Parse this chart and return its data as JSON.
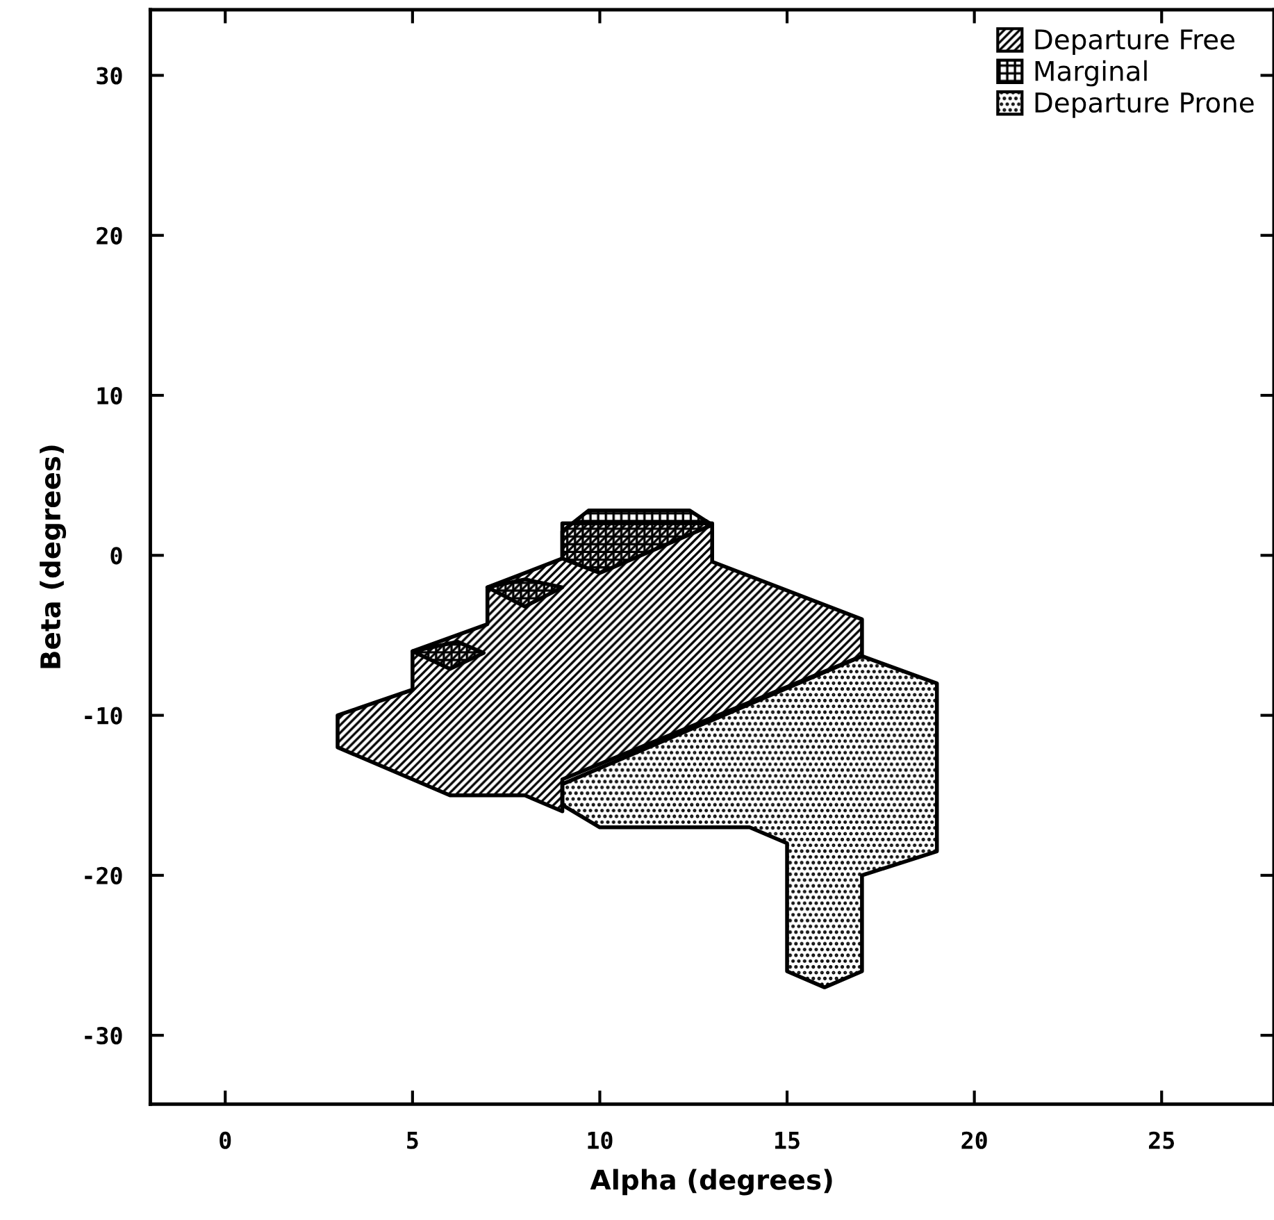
{
  "chart_data": {
    "type": "area",
    "xlabel": "Alpha (degrees)",
    "ylabel": "Beta (degrees)",
    "xlim": [
      -2,
      28
    ],
    "ylim": [
      -34.3,
      34.1
    ],
    "xticks": [
      0,
      5,
      10,
      15,
      20,
      25
    ],
    "yticks": [
      -30,
      -20,
      -10,
      0,
      10,
      20,
      30
    ],
    "grid": false,
    "legend": "top right",
    "series": [
      {
        "name": "Departure Free",
        "color": "#000000",
        "x": [
          3,
          5,
          5,
          7,
          7,
          9,
          9,
          13,
          13,
          17,
          17,
          9,
          9,
          8,
          6,
          3
        ],
        "values": [
          -10,
          -8.4,
          -6,
          -4.3,
          -2,
          -0.2,
          2,
          2,
          -0.4,
          -4,
          -6.3,
          -14,
          -16,
          -15,
          -15,
          -12
        ]
      },
      {
        "name": "Marginal",
        "color": "#000000",
        "x": [
          5,
          6.2,
          6.9,
          6,
          null,
          7,
          8,
          9,
          8,
          null,
          9,
          9.7,
          12.4,
          13,
          10,
          9
        ],
        "values": [
          -6,
          -5.4,
          -6.1,
          -7.1,
          null,
          -2,
          -1.5,
          -2,
          -3.2,
          null,
          1.5,
          2.8,
          2.8,
          1.9,
          -1.1,
          -0.2
        ]
      },
      {
        "name": "Departure Prone",
        "color": "#000000",
        "x": [
          9,
          17,
          19,
          19,
          17,
          17,
          16,
          15,
          15,
          14,
          10,
          9
        ],
        "values": [
          -14.3,
          -6.3,
          -8,
          -18.5,
          -20,
          -26,
          -27,
          -26,
          -18,
          -17,
          -17,
          -15.6
        ]
      }
    ]
  }
}
